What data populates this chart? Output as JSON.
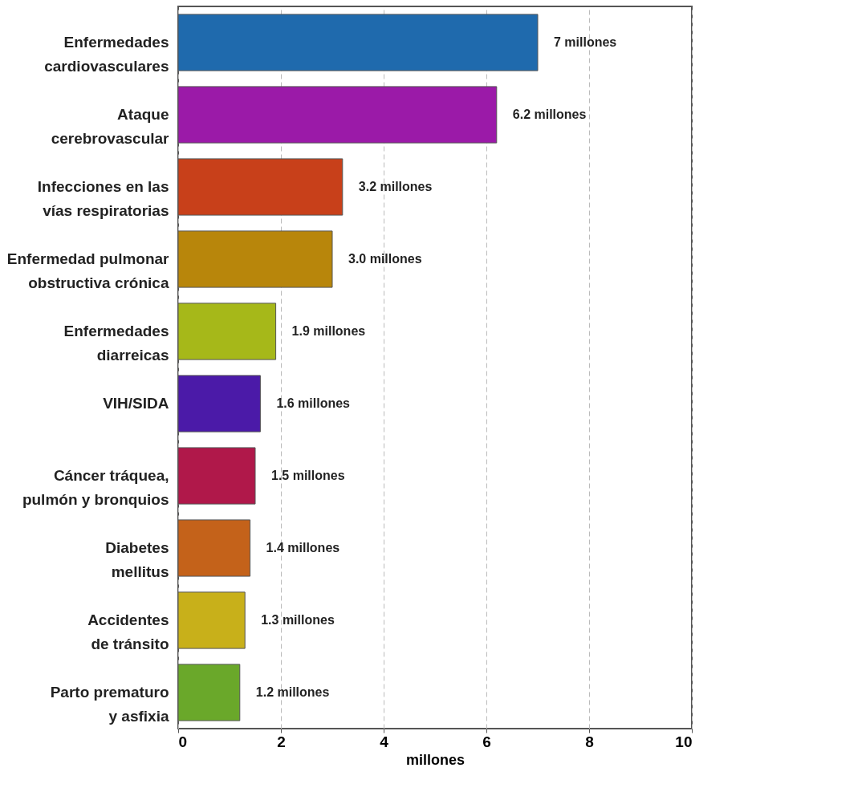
{
  "chart_data": {
    "type": "bar",
    "orientation": "horizontal",
    "xlabel": "millones",
    "categories": [
      "Enfermedades\ncardiovasculares",
      "Ataque\ncerebrovascular",
      "Infecciones en las\nvías respiratorias",
      "Enfermedad pulmonar\nobstructiva crónica",
      "Enfermedades\ndiarreicas",
      "VIH/SIDA",
      "Cáncer tráquea,\npulmón y bronquios",
      "Diabetes\nmellitus",
      "Accidentes\nde tránsito",
      "Parto prematuro\ny asfixia"
    ],
    "values": [
      7,
      6.2,
      3.2,
      3.0,
      1.9,
      1.6,
      1.5,
      1.4,
      1.3,
      1.2
    ],
    "value_labels": [
      "7 millones",
      "6.2 millones",
      "3.2 millones",
      "3.0 millones",
      "1.9 millones",
      "1.6 millones",
      "1.5 millones",
      "1.4 millones",
      "1.3 millones",
      "1.2 millones"
    ],
    "colors": [
      "#1f6aad",
      "#9b1aa8",
      "#c8401a",
      "#b8860b",
      "#a6b819",
      "#4b1aa8",
      "#b0184a",
      "#c4621a",
      "#c8b01a",
      "#6aa82a"
    ],
    "xlim": [
      0,
      10
    ],
    "xticks": [
      0,
      2,
      4,
      6,
      8,
      10
    ],
    "grid": "x"
  }
}
